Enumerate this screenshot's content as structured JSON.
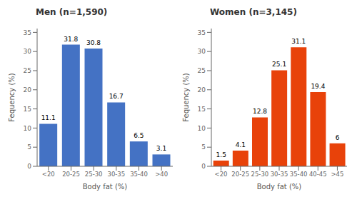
{
  "chart_data": [
    {
      "type": "bar",
      "title": "Men (n=1,590)",
      "categories": [
        "<20",
        "20-25",
        "25-30",
        "30-35",
        "35-40",
        ">40"
      ],
      "values": [
        11.1,
        31.8,
        30.8,
        16.7,
        6.5,
        3.1
      ],
      "color": "#4472C4",
      "xlabel": "Body fat (%)",
      "ylabel": "Fequency (%)",
      "ylim": [
        0,
        36
      ],
      "yticks": [
        0,
        5,
        10,
        15,
        20,
        25,
        30,
        35
      ],
      "grid": false,
      "data_labels": true
    },
    {
      "type": "bar",
      "title": "Women (n=3,145)",
      "categories": [
        "<20",
        "20-25",
        "25-30",
        "30-35",
        "35-40",
        "40-45",
        ">45"
      ],
      "values": [
        1.5,
        4.1,
        12.8,
        25.1,
        31.1,
        19.4,
        6.0
      ],
      "color": "#E8420A",
      "xlabel": "Body fat (%)",
      "ylabel": "Fequency (%)",
      "ylim": [
        0,
        36
      ],
      "yticks": [
        0,
        5,
        10,
        15,
        20,
        25,
        30,
        35
      ],
      "grid": false,
      "data_labels": true
    }
  ]
}
